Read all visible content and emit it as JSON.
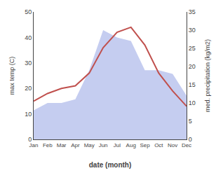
{
  "chart_data": {
    "type": "line",
    "categories": [
      "Jan",
      "Feb",
      "Mar",
      "Apr",
      "May",
      "Jun",
      "Jul",
      "Aug",
      "Sep",
      "Oct",
      "Nov",
      "Dec"
    ],
    "series": [
      {
        "type": "area",
        "axis": "y2",
        "color": "#c5cdf0",
        "values": [
          8,
          10,
          10,
          11,
          19,
          30,
          28,
          27,
          19,
          19,
          18,
          12
        ]
      },
      {
        "type": "line",
        "color": "#c0504d",
        "values": [
          15,
          18,
          20,
          21,
          26,
          36,
          42,
          44,
          37,
          26,
          19,
          13
        ]
      }
    ],
    "xlabel": "date (month)",
    "ylabel": "max temp (C)",
    "y2label": "med. precipitation (kg/m2)",
    "ylim": [
      0,
      50
    ],
    "yticks": [
      0,
      10,
      20,
      30,
      40,
      50
    ],
    "y2lim": [
      0,
      35
    ],
    "y2ticks": [
      0,
      5,
      10,
      15,
      20,
      25,
      30,
      35
    ],
    "grid": false
  }
}
